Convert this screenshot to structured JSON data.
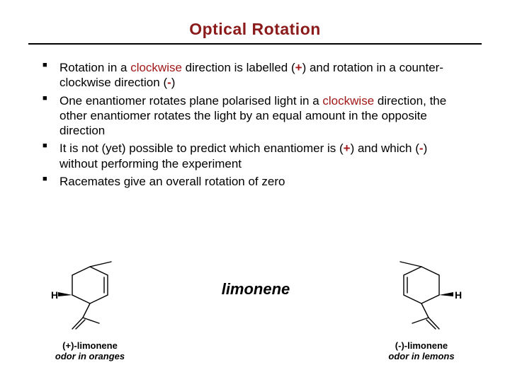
{
  "title": {
    "text": "Optical Rotation",
    "color": "#8b1a1a",
    "fontsize": 23
  },
  "rule_color": "#000000",
  "accent_color": "#a01818",
  "bullets": [
    {
      "parts": [
        {
          "t": "Rotation in a ",
          "c": "#000"
        },
        {
          "t": "clockwise",
          "c": "#a01818"
        },
        {
          "t": " direction is labelled (",
          "c": "#000"
        },
        {
          "t": "+",
          "c": "#a01818",
          "b": true
        },
        {
          "t": ") and rotation in a counter-clockwise direction (",
          "c": "#000"
        },
        {
          "t": "-",
          "c": "#a01818",
          "b": true
        },
        {
          "t": ")",
          "c": "#000"
        }
      ]
    },
    {
      "parts": [
        {
          "t": "One enantiomer rotates plane polarised light in a ",
          "c": "#000"
        },
        {
          "t": "clockwise",
          "c": "#a01818"
        },
        {
          "t": " direction, the other enantiomer rotates the light by an equal amount in the opposite direction",
          "c": "#000"
        }
      ]
    },
    {
      "parts": [
        {
          "t": "It is not (yet) possible to predict which enantiomer is (",
          "c": "#000"
        },
        {
          "t": "+",
          "c": "#a01818",
          "b": true
        },
        {
          "t": ") and which (",
          "c": "#000"
        },
        {
          "t": "-",
          "c": "#a01818",
          "b": true
        },
        {
          "t": ") without performing the experiment",
          "c": "#000"
        }
      ]
    },
    {
      "parts": [
        {
          "t": "Racemates give an overall rotation of zero",
          "c": "#000"
        }
      ]
    }
  ],
  "center_label": "limonene",
  "molecules": {
    "left": {
      "name": "(+)-limonene",
      "odor": "odor in oranges",
      "stroke": "#000000",
      "stroke_width": 1.4,
      "h_label": "H",
      "h_label_side": "left"
    },
    "right": {
      "name": "(-)-limonene",
      "odor": "odor in lemons",
      "stroke": "#000000",
      "stroke_width": 1.4,
      "h_label": "H",
      "h_label_side": "right"
    }
  }
}
